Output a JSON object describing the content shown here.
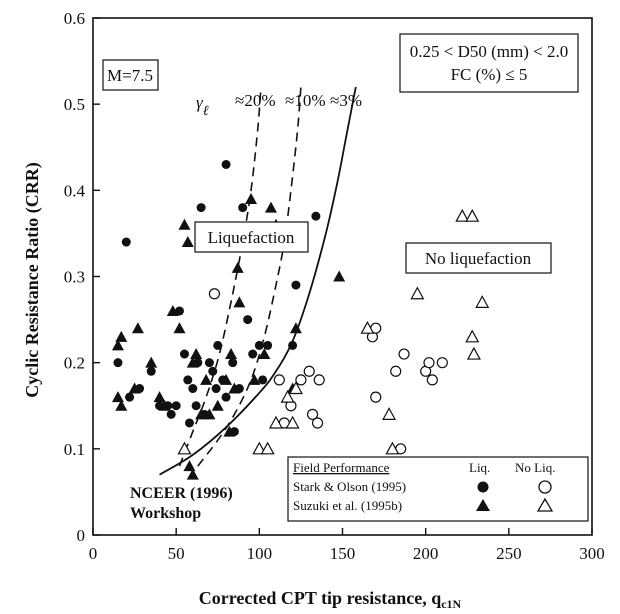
{
  "chart_data": {
    "type": "scatter",
    "xlabel_main": "Corrected CPT tip resistance, q",
    "xlabel_sub": "c1N",
    "ylabel": "Cyclic Resistance Ratio (CRR)",
    "xlim": [
      0,
      300
    ],
    "ylim": [
      0,
      0.6
    ],
    "x_ticks": [
      "0",
      "50",
      "100",
      "150",
      "200",
      "250",
      "300"
    ],
    "y_ticks": [
      "0",
      "0.1",
      "0.2",
      "0.3",
      "0.4",
      "0.5",
      "0.6"
    ],
    "annotations": {
      "magnitude": "M=7.5",
      "cond_line1": "0.25 < D50 (mm) < 2.0",
      "cond_line2": "FC (%) ≤ 5",
      "gamma_symbol": "γ",
      "gamma_sub": "ℓ",
      "strain_20": "≈20%",
      "strain_10": "≈10%",
      "strain_3": "≈3%",
      "liq_zone": "Liquefaction",
      "noliq_zone": "No liquefaction",
      "curve_label_1": "NCEER  (1996)",
      "curve_label_2": "Workshop"
    },
    "legend": {
      "title": "Field Performance",
      "col_liq": "Liq.",
      "col_noliq": "No Liq.",
      "rows": [
        "Stark & Olson (1995)",
        "Suzuki et al. (1995b)"
      ]
    },
    "curves": [
      {
        "name": "≈3%",
        "style": "solid",
        "x": [
          40,
          60,
          80,
          100,
          110,
          120,
          130,
          140,
          147,
          152,
          158
        ],
        "y": [
          0.07,
          0.093,
          0.125,
          0.165,
          0.19,
          0.225,
          0.28,
          0.35,
          0.41,
          0.46,
          0.52
        ]
      },
      {
        "name": "≈10%",
        "style": "dashed",
        "x": [
          63,
          75,
          85,
          95,
          103,
          110,
          115,
          119,
          123,
          125
        ],
        "y": [
          0.08,
          0.11,
          0.14,
          0.18,
          0.23,
          0.29,
          0.34,
          0.4,
          0.47,
          0.52
        ]
      },
      {
        "name": "≈20%",
        "style": "dashed",
        "x": [
          52,
          60,
          68,
          76,
          84,
          90,
          95,
          99,
          101
        ],
        "y": [
          0.08,
          0.12,
          0.16,
          0.21,
          0.28,
          0.34,
          0.4,
          0.47,
          0.52
        ]
      }
    ],
    "series": [
      {
        "marker": "filled-circle",
        "points": [
          [
            15,
            0.2
          ],
          [
            20,
            0.34
          ],
          [
            22,
            0.16
          ],
          [
            28,
            0.17
          ],
          [
            35,
            0.19
          ],
          [
            40,
            0.15
          ],
          [
            45,
            0.15
          ],
          [
            47,
            0.14
          ],
          [
            50,
            0.15
          ],
          [
            52,
            0.26
          ],
          [
            55,
            0.21
          ],
          [
            57,
            0.18
          ],
          [
            60,
            0.17
          ],
          [
            63,
            0.2
          ],
          [
            65,
            0.38
          ],
          [
            70,
            0.2
          ],
          [
            72,
            0.19
          ],
          [
            75,
            0.22
          ],
          [
            78,
            0.18
          ],
          [
            80,
            0.43
          ],
          [
            80,
            0.16
          ],
          [
            84,
            0.2
          ],
          [
            88,
            0.17
          ],
          [
            90,
            0.38
          ],
          [
            93,
            0.25
          ],
          [
            96,
            0.21
          ],
          [
            100,
            0.22
          ],
          [
            102,
            0.18
          ],
          [
            105,
            0.22
          ],
          [
            120,
            0.22
          ],
          [
            122,
            0.29
          ],
          [
            130,
            0.19
          ],
          [
            134,
            0.37
          ],
          [
            62,
            0.15
          ],
          [
            67,
            0.14
          ],
          [
            74,
            0.17
          ],
          [
            85,
            0.12
          ],
          [
            58,
            0.13
          ]
        ]
      },
      {
        "marker": "open-circle",
        "points": [
          [
            73,
            0.28
          ],
          [
            112,
            0.18
          ],
          [
            115,
            0.13
          ],
          [
            119,
            0.15
          ],
          [
            125,
            0.18
          ],
          [
            130,
            0.19
          ],
          [
            132,
            0.14
          ],
          [
            136,
            0.18
          ],
          [
            135,
            0.13
          ],
          [
            168,
            0.23
          ],
          [
            170,
            0.24
          ],
          [
            170,
            0.16
          ],
          [
            182,
            0.19
          ],
          [
            185,
            0.1
          ],
          [
            187,
            0.21
          ],
          [
            200,
            0.19
          ],
          [
            202,
            0.2
          ],
          [
            204,
            0.18
          ],
          [
            210,
            0.2
          ]
        ]
      },
      {
        "marker": "filled-triangle",
        "points": [
          [
            15,
            0.22
          ],
          [
            17,
            0.23
          ],
          [
            15,
            0.16
          ],
          [
            17,
            0.15
          ],
          [
            25,
            0.17
          ],
          [
            27,
            0.24
          ],
          [
            35,
            0.2
          ],
          [
            40,
            0.16
          ],
          [
            43,
            0.15
          ],
          [
            48,
            0.26
          ],
          [
            52,
            0.24
          ],
          [
            55,
            0.36
          ],
          [
            57,
            0.34
          ],
          [
            58,
            0.08
          ],
          [
            60,
            0.2
          ],
          [
            60,
            0.07
          ],
          [
            62,
            0.21
          ],
          [
            65,
            0.14
          ],
          [
            68,
            0.18
          ],
          [
            70,
            0.14
          ],
          [
            75,
            0.15
          ],
          [
            80,
            0.18
          ],
          [
            82,
            0.12
          ],
          [
            83,
            0.21
          ],
          [
            85,
            0.17
          ],
          [
            87,
            0.31
          ],
          [
            88,
            0.27
          ],
          [
            95,
            0.39
          ],
          [
            97,
            0.18
          ],
          [
            103,
            0.21
          ],
          [
            107,
            0.38
          ],
          [
            110,
            0.36
          ],
          [
            120,
            0.17
          ],
          [
            122,
            0.24
          ],
          [
            148,
            0.3
          ]
        ]
      },
      {
        "marker": "open-triangle",
        "points": [
          [
            55,
            0.1
          ],
          [
            100,
            0.1
          ],
          [
            105,
            0.1
          ],
          [
            110,
            0.13
          ],
          [
            117,
            0.16
          ],
          [
            120,
            0.13
          ],
          [
            122,
            0.17
          ],
          [
            165,
            0.24
          ],
          [
            178,
            0.14
          ],
          [
            180,
            0.1
          ],
          [
            195,
            0.28
          ],
          [
            222,
            0.37
          ],
          [
            228,
            0.37
          ],
          [
            228,
            0.23
          ],
          [
            229,
            0.21
          ],
          [
            234,
            0.27
          ]
        ]
      }
    ]
  }
}
